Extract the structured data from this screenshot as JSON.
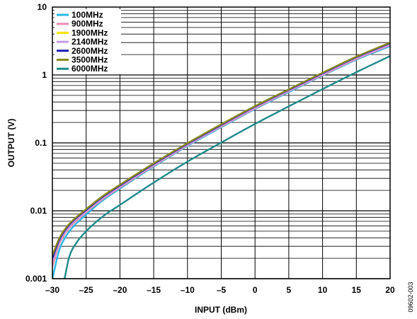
{
  "chart_data": {
    "type": "line",
    "xlabel": "INPUT (dBm)",
    "ylabel": "OUTPUT (V)",
    "figure_id": "09602-003",
    "x_scale": "linear",
    "y_scale": "log",
    "xlim": [
      -30,
      20
    ],
    "ylim": [
      0.001,
      10
    ],
    "x_ticks": [
      "–30",
      "–25",
      "–20",
      "–15",
      "–10",
      "–5",
      "0",
      "5",
      "10",
      "15",
      "20"
    ],
    "y_ticks": [
      "0.001",
      "0.01",
      "0.1",
      "1",
      "10"
    ],
    "grid": true,
    "legend_position": "top-left",
    "series": [
      {
        "name": "100MHz",
        "color": "#29b8e6",
        "x": [
          -30,
          -29,
          -28,
          -27,
          -25,
          -22.5,
          -20,
          -15,
          -10,
          -5,
          0,
          5,
          10,
          15,
          20
        ],
        "y": [
          0.001,
          0.0026,
          0.0042,
          0.0057,
          0.0088,
          0.0143,
          0.0212,
          0.0448,
          0.09,
          0.17,
          0.315,
          0.56,
          0.98,
          1.68,
          2.65
        ]
      },
      {
        "name": "900MHz",
        "color": "#f08cb4",
        "x": [
          -30,
          -29,
          -28,
          -27,
          -25,
          -22.5,
          -20,
          -15,
          -10,
          -5,
          0,
          5,
          10,
          15,
          20
        ],
        "y": [
          0.0015,
          0.0032,
          0.0048,
          0.0063,
          0.0095,
          0.015,
          0.022,
          0.046,
          0.092,
          0.174,
          0.322,
          0.575,
          1.0,
          1.72,
          2.75
        ]
      },
      {
        "name": "1900MHz",
        "color": "#f5e400",
        "x": [
          -30,
          -29,
          -28,
          -27,
          -25,
          -22.5,
          -20,
          -15,
          -10,
          -5,
          0,
          5,
          10,
          15,
          20
        ],
        "y": [
          0.0019,
          0.0036,
          0.0052,
          0.0068,
          0.01,
          0.0158,
          0.023,
          0.0478,
          0.095,
          0.18,
          0.335,
          0.595,
          1.04,
          1.8,
          2.9
        ]
      },
      {
        "name": "2140MHz",
        "color": "#c89be6",
        "x": [
          -30,
          -29,
          -28,
          -27,
          -25,
          -22.5,
          -20,
          -15,
          -10,
          -5,
          0,
          5,
          10,
          15,
          20
        ],
        "y": [
          0.0018,
          0.0035,
          0.0051,
          0.0067,
          0.0099,
          0.0156,
          0.0228,
          0.0475,
          0.094,
          0.178,
          0.332,
          0.59,
          1.03,
          1.78,
          2.85
        ]
      },
      {
        "name": "2600MHz",
        "color": "#1a1ab3",
        "x": [
          -30,
          -29,
          -28,
          -27,
          -25,
          -22.5,
          -20,
          -15,
          -10,
          -5,
          0,
          5,
          10,
          15,
          20
        ],
        "y": [
          0.002,
          0.0037,
          0.0054,
          0.007,
          0.0103,
          0.0162,
          0.0236,
          0.049,
          0.097,
          0.184,
          0.342,
          0.605,
          1.06,
          1.83,
          2.95
        ]
      },
      {
        "name": "3500MHz",
        "color": "#8a8a1a",
        "x": [
          -30,
          -29,
          -28,
          -27,
          -25,
          -22.5,
          -20,
          -15,
          -10,
          -5,
          0,
          5,
          10,
          15,
          20
        ],
        "y": [
          0.0022,
          0.0039,
          0.0056,
          0.0072,
          0.0106,
          0.0166,
          0.0242,
          0.05,
          0.099,
          0.188,
          0.348,
          0.615,
          1.08,
          1.86,
          3.0
        ]
      },
      {
        "name": "6000MHz",
        "color": "#1f8a8a",
        "x": [
          -28.2,
          -27.5,
          -26.5,
          -25,
          -22.5,
          -20,
          -15,
          -10,
          -5,
          0,
          5,
          10,
          15,
          20
        ],
        "y": [
          0.001,
          0.0021,
          0.0033,
          0.005,
          0.0083,
          0.0122,
          0.026,
          0.053,
          0.101,
          0.19,
          0.345,
          0.62,
          1.1,
          1.9
        ]
      }
    ]
  }
}
